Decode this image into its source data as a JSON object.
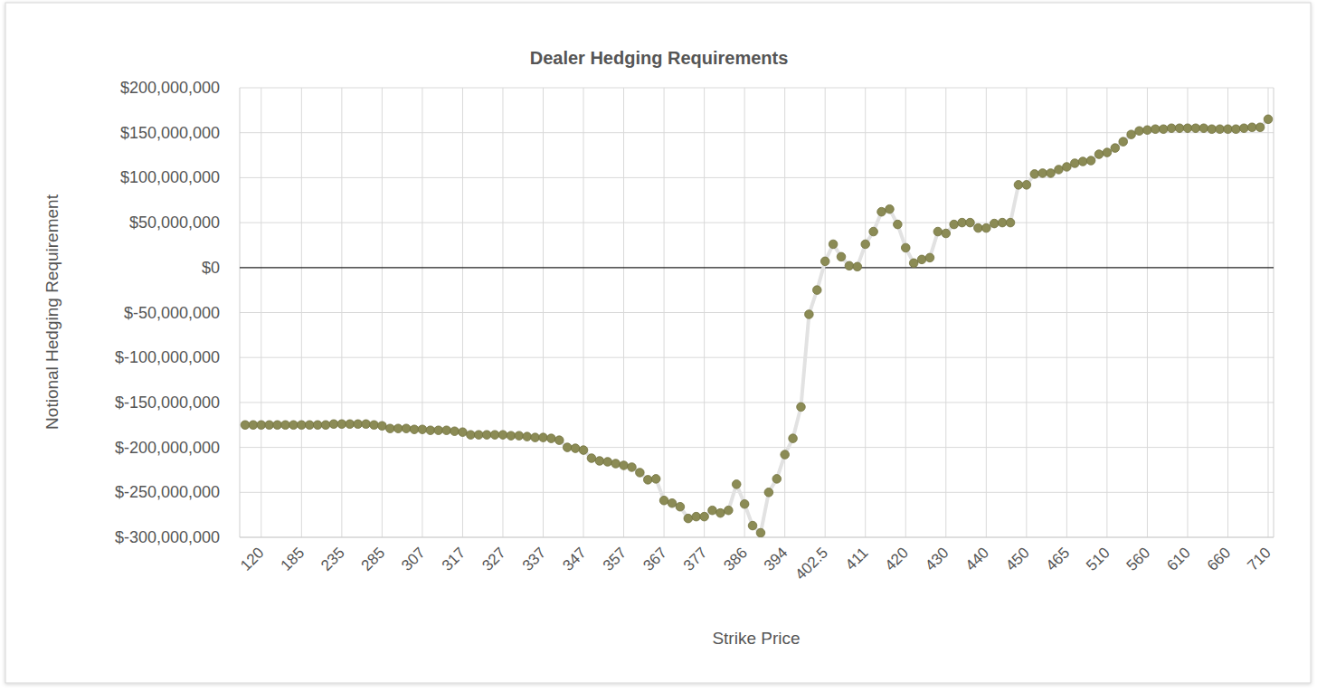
{
  "chart_data": {
    "type": "line",
    "title": "Dealer Hedging Requirements",
    "x_label": "Strike Price",
    "y_label": "Notional Hedging Requirement",
    "color": "#8b8b55",
    "marker": "circle",
    "grid": true,
    "ylim": [
      -300000000,
      200000000
    ],
    "yticks": [
      {
        "value": -300000000,
        "label": "$-300,000,000"
      },
      {
        "value": -250000000,
        "label": "$-250,000,000"
      },
      {
        "value": -200000000,
        "label": "$-200,000,000"
      },
      {
        "value": -150000000,
        "label": "$-150,000,000"
      },
      {
        "value": -100000000,
        "label": "$-100,000,000"
      },
      {
        "value": -50000000,
        "label": "$-50,000,000"
      },
      {
        "value": 0,
        "label": "$0"
      },
      {
        "value": 50000000,
        "label": "$50,000,000"
      },
      {
        "value": 100000000,
        "label": "$100,000,000"
      },
      {
        "value": 150000000,
        "label": "$150,000,000"
      },
      {
        "value": 200000000,
        "label": "$200,000,000"
      }
    ],
    "categories": [
      null,
      null,
      "120",
      null,
      null,
      null,
      null,
      "185",
      null,
      null,
      null,
      null,
      "235",
      null,
      null,
      null,
      null,
      "285",
      null,
      null,
      null,
      null,
      "307",
      null,
      null,
      null,
      null,
      "317",
      null,
      null,
      null,
      null,
      "327",
      null,
      null,
      null,
      null,
      "337",
      null,
      null,
      null,
      null,
      "347",
      null,
      null,
      null,
      null,
      "357",
      null,
      null,
      null,
      null,
      "367",
      null,
      null,
      null,
      null,
      "377",
      null,
      null,
      null,
      null,
      "386",
      null,
      null,
      null,
      null,
      "394",
      null,
      null,
      null,
      null,
      "402.5",
      null,
      null,
      null,
      null,
      "411",
      null,
      null,
      null,
      null,
      "420",
      null,
      null,
      null,
      null,
      "430",
      null,
      null,
      null,
      null,
      "440",
      null,
      null,
      null,
      null,
      "450",
      null,
      null,
      null,
      null,
      "465",
      null,
      null,
      null,
      null,
      "510",
      null,
      null,
      null,
      null,
      "560",
      null,
      null,
      null,
      null,
      "610",
      null,
      null,
      null,
      null,
      "660",
      null,
      null,
      null,
      null,
      "710"
    ],
    "values": [
      -175000000,
      -175000000,
      -175000000,
      -175000000,
      -175000000,
      -175000000,
      -175000000,
      -175000000,
      -175000000,
      -175000000,
      -175000000,
      -174000000,
      -174000000,
      -174000000,
      -174000000,
      -174000000,
      -175000000,
      -176000000,
      -179000000,
      -179000000,
      -179000000,
      -180000000,
      -180000000,
      -181000000,
      -181000000,
      -181000000,
      -182000000,
      -183000000,
      -186000000,
      -186000000,
      -186000000,
      -186000000,
      -186000000,
      -187000000,
      -187000000,
      -188000000,
      -189000000,
      -189000000,
      -190000000,
      -192000000,
      -200000000,
      -201000000,
      -203000000,
      -212000000,
      -215000000,
      -216000000,
      -218000000,
      -220000000,
      -222000000,
      -228000000,
      -236000000,
      -235000000,
      -259000000,
      -262000000,
      -266000000,
      -279000000,
      -277000000,
      -277000000,
      -270000000,
      -273000000,
      -270000000,
      -241000000,
      -263000000,
      -287000000,
      -295000000,
      -250000000,
      -235000000,
      -208000000,
      -190000000,
      -155000000,
      -52000000,
      -25000000,
      7000000,
      26000000,
      12000000,
      2000000,
      1000000,
      26000000,
      40000000,
      62000000,
      65000000,
      48000000,
      22000000,
      5000000,
      9000000,
      11000000,
      40000000,
      38000000,
      48000000,
      50000000,
      50000000,
      44000000,
      44000000,
      49000000,
      50000000,
      50000000,
      92000000,
      92000000,
      104000000,
      105000000,
      105000000,
      109000000,
      112000000,
      116000000,
      118000000,
      119000000,
      126000000,
      128000000,
      133000000,
      140000000,
      148000000,
      152000000,
      153000000,
      154000000,
      154000000,
      155000000,
      155000000,
      155000000,
      155000000,
      155000000,
      154000000,
      154000000,
      154000000,
      154000000,
      155000000,
      156000000,
      156000000,
      165000000
    ]
  }
}
